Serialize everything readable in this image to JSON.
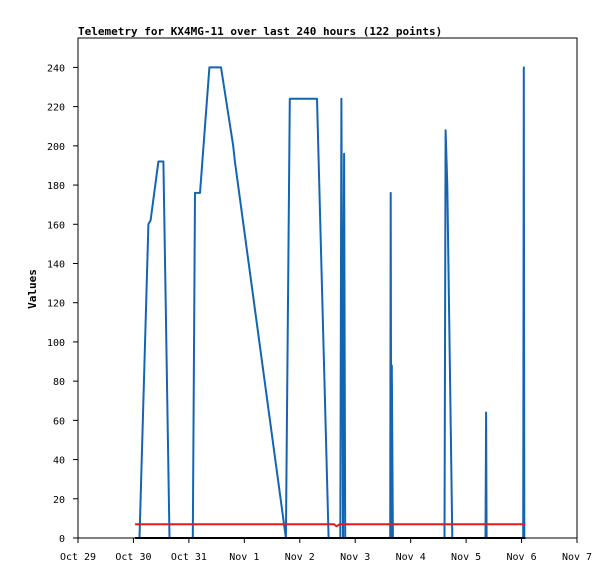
{
  "chart_data": {
    "type": "line",
    "title": "Telemetry for KX4MG-11 over last 240 hours (122 points)",
    "xlabel": "",
    "ylabel": "Values",
    "x_unit": "days",
    "x_tick_labels": [
      "Oct 29",
      "Oct 30",
      "Oct 31",
      "Nov 1",
      "Nov 2",
      "Nov 3",
      "Nov 4",
      "Nov 5",
      "Nov 6",
      "Nov 7"
    ],
    "xlim": [
      0,
      9
    ],
    "ylim": [
      0,
      255
    ],
    "y_ticks": [
      0,
      20,
      40,
      60,
      80,
      100,
      120,
      140,
      160,
      180,
      200,
      220,
      240
    ],
    "grid": false,
    "legend": "none",
    "series": [
      {
        "color": "#1464b4",
        "x": [
          1.05,
          1.11,
          1.27,
          1.31,
          1.45,
          1.54,
          1.65,
          1.69,
          2.07,
          2.11,
          2.2,
          2.37,
          2.58,
          2.8,
          2.83,
          3.75,
          3.82,
          4.21,
          4.31,
          4.52,
          4.55,
          4.59,
          4.71,
          4.73,
          4.75,
          4.78,
          4.8,
          4.82,
          5.63,
          5.64,
          5.65,
          5.66,
          5.68,
          6.52,
          6.56,
          6.61,
          6.63,
          6.66,
          6.75,
          7.35,
          7.36,
          7.37,
          7.38,
          7.39,
          7.4,
          8.03,
          8.04,
          8.05,
          8.06,
          8.07
        ],
        "y": [
          0,
          0,
          160,
          162,
          192,
          192,
          0,
          0,
          0,
          176,
          176,
          240,
          240,
          200,
          192,
          0,
          224,
          224,
          224,
          0,
          0,
          0,
          0,
          0,
          224,
          0,
          196,
          0,
          0,
          176,
          0,
          88,
          0,
          0,
          0,
          0,
          208,
          180,
          0,
          0,
          64,
          0,
          0,
          0,
          0,
          0,
          240,
          0,
          0,
          0
        ]
      },
      {
        "color": "#e41a1c",
        "x": [
          1.03,
          4.62,
          4.66,
          4.72,
          8.07
        ],
        "y": [
          7,
          7,
          6,
          7,
          7
        ]
      },
      {
        "color": "#000000",
        "x": [
          1.03,
          8.07
        ],
        "y": [
          0,
          0
        ]
      }
    ]
  }
}
